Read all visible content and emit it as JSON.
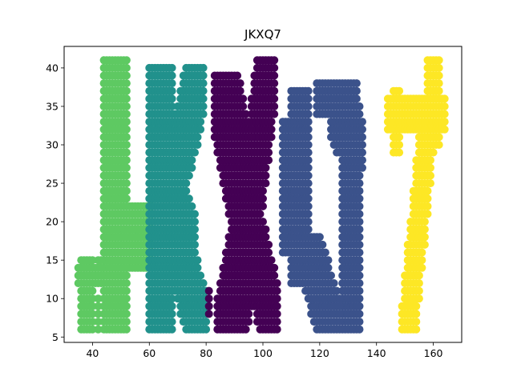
{
  "chart_data": {
    "type": "scatter",
    "title": "JKXQ7",
    "xlabel": "",
    "ylabel": "",
    "xlim": [
      30,
      170
    ],
    "ylim": [
      4.3,
      42.8
    ],
    "xticks": [
      40,
      60,
      80,
      100,
      120,
      140,
      160
    ],
    "yticks": [
      5,
      10,
      15,
      20,
      25,
      30,
      35,
      40
    ],
    "grid": false,
    "legend": "none",
    "marker_radius": 5,
    "series": [
      {
        "glyph": "J",
        "color": "#5ec962",
        "strokes": [
          {
            "from": [
              48,
              38
            ],
            "to": [
              48,
              6
            ],
            "half_width": 4
          },
          {
            "from": [
              48,
              18
            ],
            "to": [
              57,
              18
            ],
            "half_width": 4
          },
          {
            "from": [
              47,
              14
            ],
            "to": [
              43,
              14
            ],
            "half_width": 1
          },
          {
            "from": [
              44,
              13
            ],
            "to": [
              36,
              13
            ],
            "half_width": 1
          },
          {
            "from": [
              38,
              13
            ],
            "to": [
              38,
              8
            ],
            "half_width": 2
          },
          {
            "from": [
              42,
              10
            ],
            "to": [
              42,
              6
            ],
            "half_width": 0
          }
        ]
      },
      {
        "glyph": "K",
        "color": "#21918c",
        "strokes": [
          {
            "from": [
              64,
              36
            ],
            "to": [
              64,
              8
            ],
            "half_width": 4
          },
          {
            "from": [
              66,
              21
            ],
            "to": [
              76,
              37
            ],
            "half_width": 3
          },
          {
            "from": [
              66,
              21
            ],
            "to": [
              77,
              8
            ],
            "half_width": 3
          },
          {
            "from": [
              66,
              24
            ],
            "to": [
              72,
              17
            ],
            "half_width": 4
          }
        ]
      },
      {
        "glyph": "X",
        "color": "#440154",
        "strokes": [
          {
            "from": [
              87,
              35
            ],
            "to": [
              95,
              20
            ],
            "half_width": 4
          },
          {
            "from": [
              101,
              38
            ],
            "to": [
              95,
              20
            ],
            "half_width": 3
          },
          {
            "from": [
              95,
              20
            ],
            "to": [
              88,
              6
            ],
            "half_width": 4
          },
          {
            "from": [
              95,
              20
            ],
            "to": [
              102,
              9
            ],
            "half_width": 3
          },
          {
            "from": [
              81,
              11
            ],
            "to": [
              81,
              8
            ],
            "half_width": 0
          }
        ]
      },
      {
        "glyph": "Q",
        "color": "#3b528b",
        "strokes": [
          {
            "from": [
              108,
              32
            ],
            "to": [
              108,
              17
            ],
            "half_width": 1
          },
          {
            "from": [
              113,
              34
            ],
            "to": [
              113,
              15
            ],
            "half_width": 3
          },
          {
            "from": [
              117,
              15
            ],
            "to": [
              123,
              8
            ],
            "half_width": 3
          },
          {
            "from": [
              121,
              36
            ],
            "to": [
              131,
              36
            ],
            "half_width": 2
          },
          {
            "from": [
              127,
              34
            ],
            "to": [
              132,
              30
            ],
            "half_width": 3
          },
          {
            "from": [
              131,
              32
            ],
            "to": [
              131,
              10
            ],
            "half_width": 3
          },
          {
            "from": [
              131,
              38
            ],
            "to": [
              131,
              36
            ],
            "half_width": 0
          },
          {
            "from": [
              122,
              8
            ],
            "to": [
              132,
              8
            ],
            "half_width": 2
          }
        ]
      },
      {
        "glyph": "7",
        "color": "#fde725",
        "strokes": [
          {
            "from": [
              160,
              41
            ],
            "to": [
              160,
              32
            ],
            "half_width": 2
          },
          {
            "from": [
              147,
              36
            ],
            "to": [
              147,
              30
            ],
            "half_width": 1
          },
          {
            "from": [
              146,
              34
            ],
            "to": [
              162,
              34
            ],
            "half_width": 2
          },
          {
            "from": [
              158,
              32
            ],
            "to": [
              151,
              6
            ],
            "half_width": 2
          }
        ]
      }
    ]
  }
}
